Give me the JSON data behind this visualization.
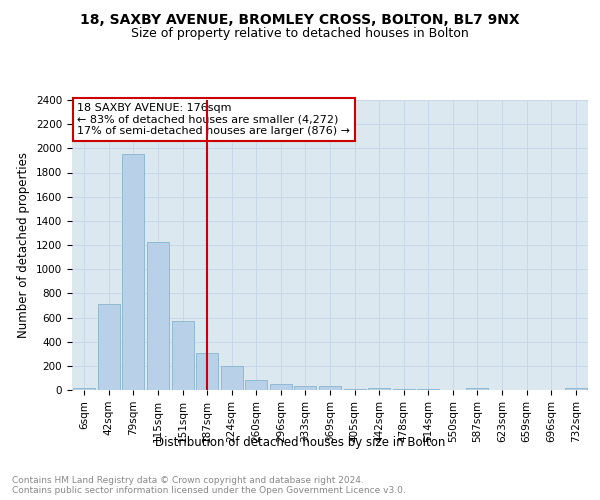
{
  "title_line1": "18, SAXBY AVENUE, BROMLEY CROSS, BOLTON, BL7 9NX",
  "title_line2": "Size of property relative to detached houses in Bolton",
  "xlabel": "Distribution of detached houses by size in Bolton",
  "ylabel": "Number of detached properties",
  "categories": [
    "6sqm",
    "42sqm",
    "79sqm",
    "115sqm",
    "151sqm",
    "187sqm",
    "224sqm",
    "260sqm",
    "296sqm",
    "333sqm",
    "369sqm",
    "405sqm",
    "442sqm",
    "478sqm",
    "514sqm",
    "550sqm",
    "587sqm",
    "623sqm",
    "659sqm",
    "696sqm",
    "732sqm"
  ],
  "values": [
    15,
    710,
    1950,
    1225,
    575,
    305,
    200,
    85,
    50,
    30,
    35,
    5,
    20,
    5,
    5,
    0,
    15,
    0,
    0,
    0,
    15
  ],
  "bar_color": "#b8d0e8",
  "bar_edge_color": "#7aaec8",
  "vline_index": 5,
  "vline_color": "#cc0000",
  "annotation_text": "18 SAXBY AVENUE: 176sqm\n← 83% of detached houses are smaller (4,272)\n17% of semi-detached houses are larger (876) →",
  "annotation_box_color": "#cc0000",
  "ylim": [
    0,
    2400
  ],
  "yticks": [
    0,
    200,
    400,
    600,
    800,
    1000,
    1200,
    1400,
    1600,
    1800,
    2000,
    2200,
    2400
  ],
  "grid_color": "#c8d8e8",
  "background_color": "#dce8f0",
  "footer_text": "Contains HM Land Registry data © Crown copyright and database right 2024.\nContains public sector information licensed under the Open Government Licence v3.0.",
  "title_fontsize": 10,
  "subtitle_fontsize": 9,
  "axis_label_fontsize": 8.5,
  "tick_fontsize": 7.5,
  "annotation_fontsize": 8,
  "footer_fontsize": 6.5
}
